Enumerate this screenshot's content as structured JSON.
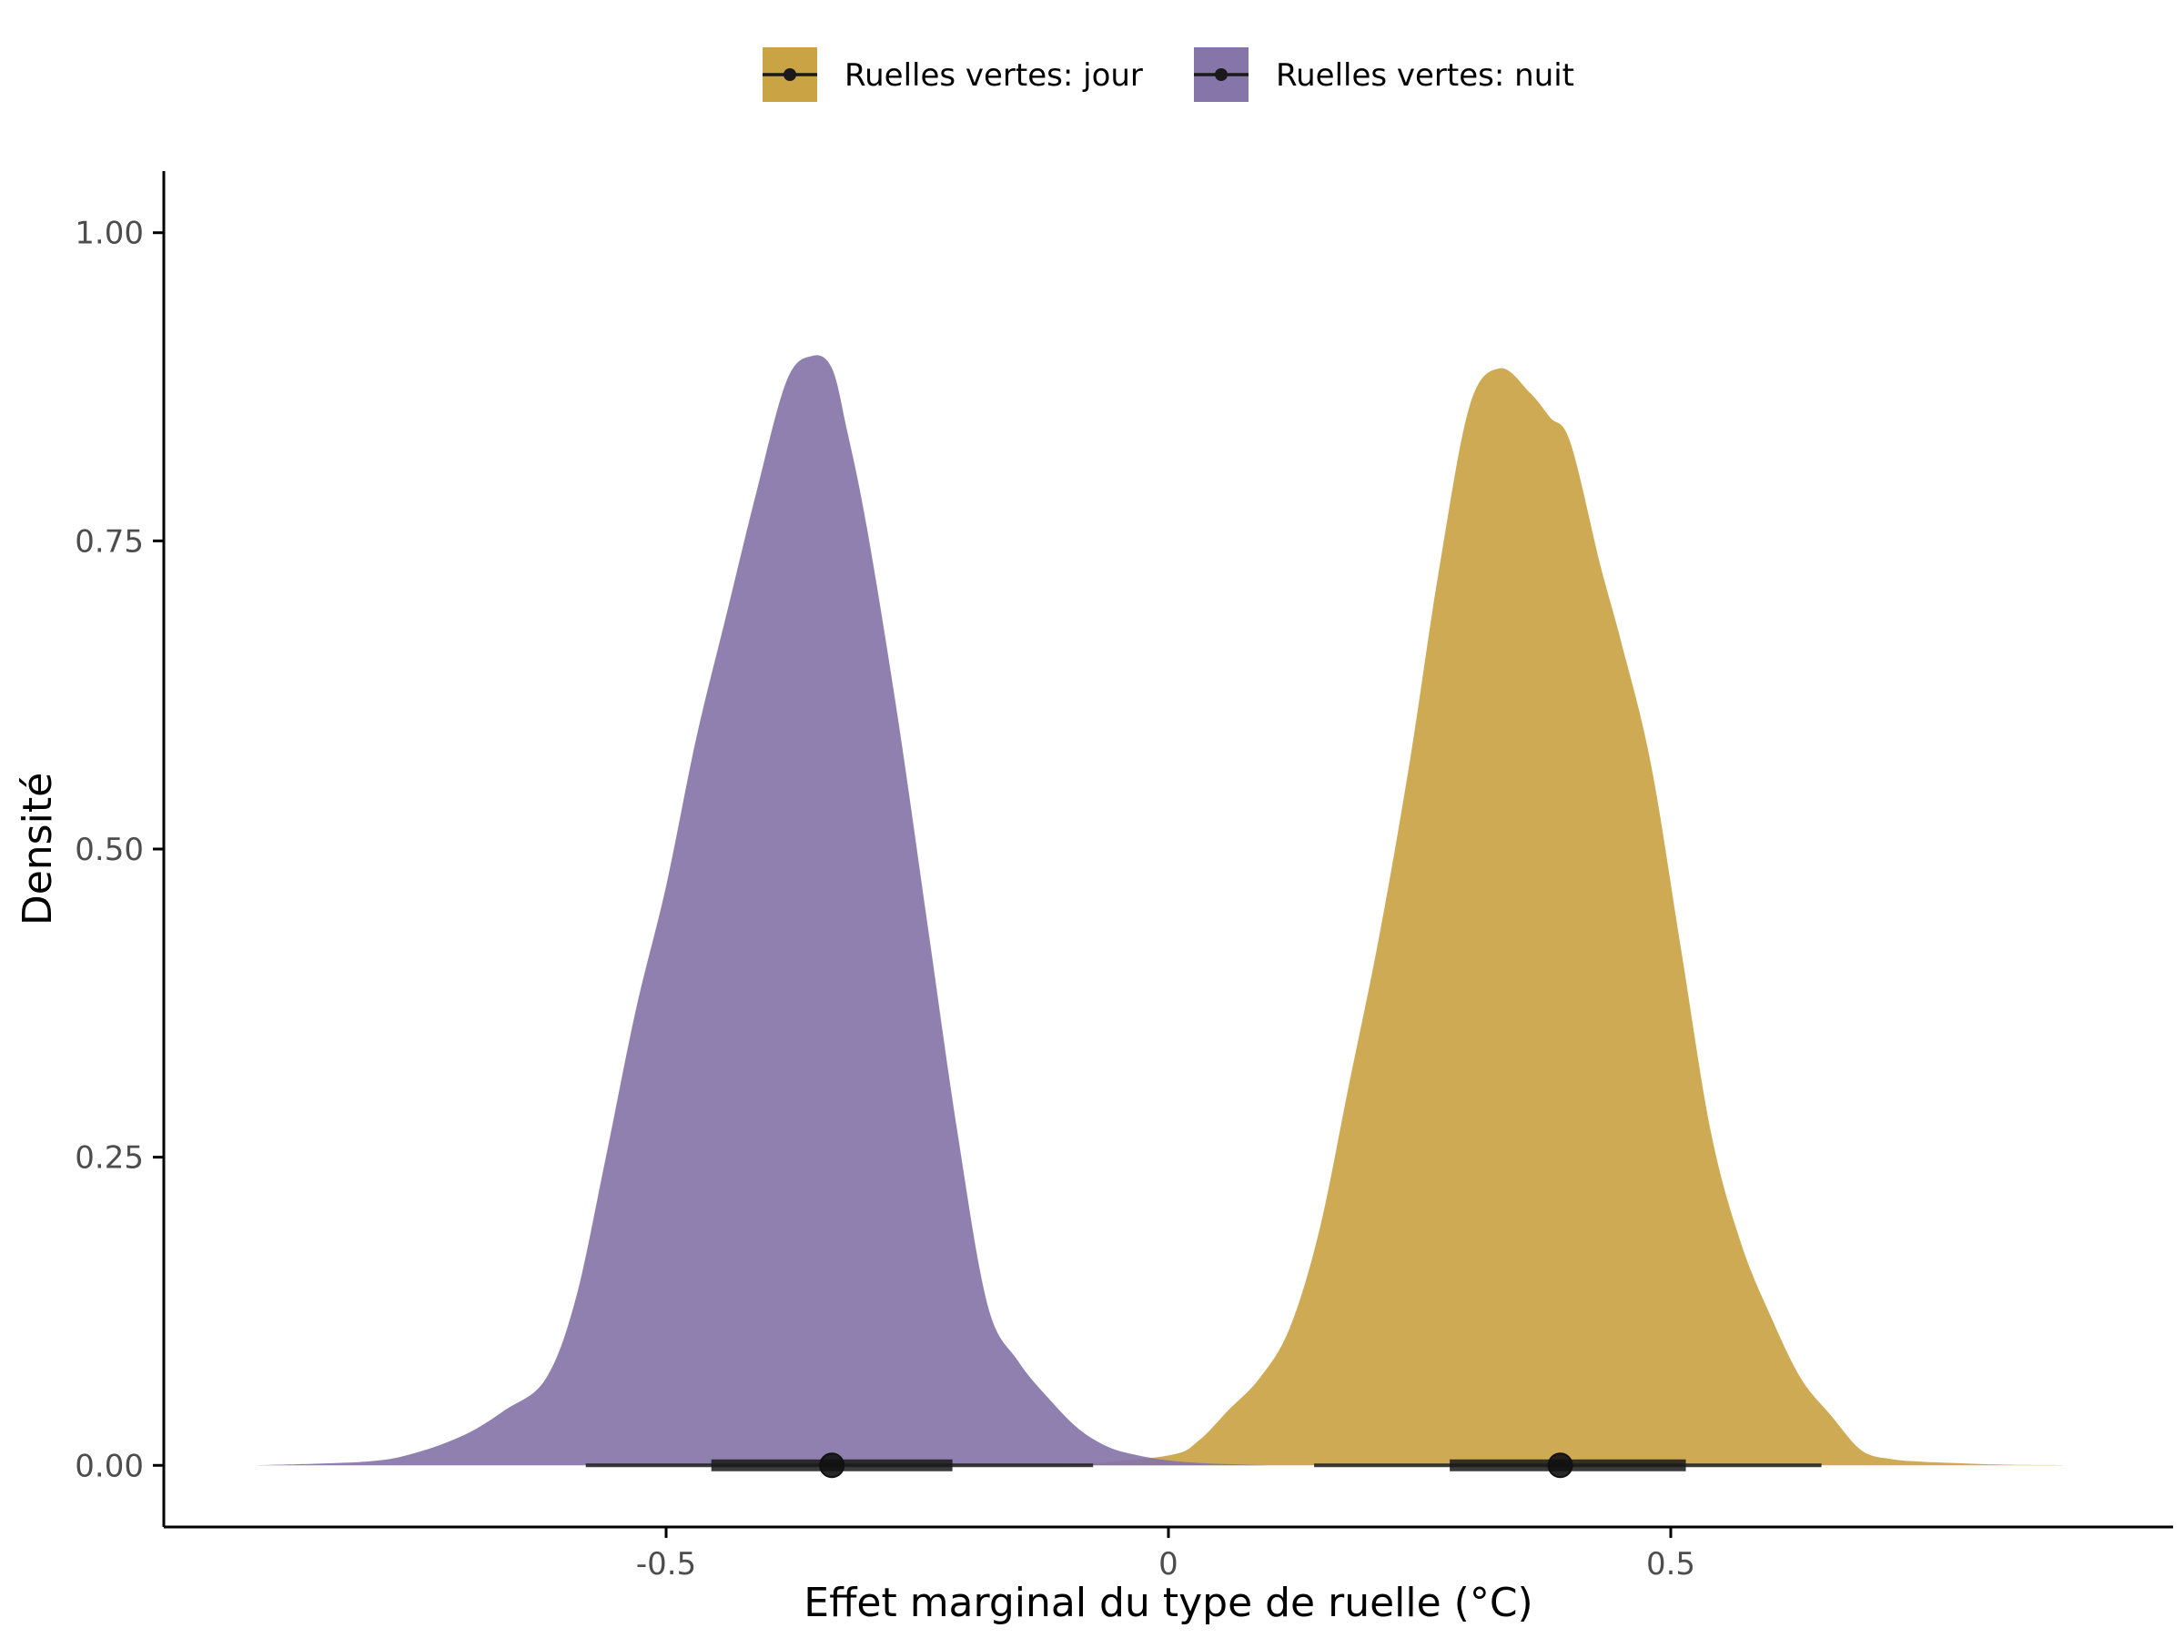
{
  "chart_data": {
    "type": "area",
    "xlabel": "Effet marginal du type de ruelle (°C)",
    "ylabel": "Densité",
    "xlim": [
      -1.0,
      1.0
    ],
    "ylim": [
      -0.05,
      1.05
    ],
    "x_ticks": [
      -0.5,
      0,
      0.5
    ],
    "x_tick_labels": [
      "-0.5",
      "0",
      "0.5"
    ],
    "y_ticks": [
      0,
      0.25,
      0.5,
      0.75,
      1.0
    ],
    "y_tick_labels": [
      "0.00",
      "0.25",
      "0.50",
      "0.75",
      "1.00"
    ],
    "grid": false,
    "legend_position": "top",
    "series": [
      {
        "name": "Ruelles vertes: jour",
        "color": "#c9a344",
        "point": 0.39,
        "interval_inner": [
          0.28,
          0.515
        ],
        "interval_outer": [
          0.145,
          0.65
        ],
        "x": [
          -0.1,
          0.0,
          0.03,
          0.06,
          0.09,
          0.12,
          0.15,
          0.18,
          0.21,
          0.24,
          0.27,
          0.3,
          0.33,
          0.36,
          0.38,
          0.4,
          0.43,
          0.45,
          0.48,
          0.51,
          0.54,
          0.57,
          0.6,
          0.63,
          0.66,
          0.69,
          0.72,
          0.75,
          0.78,
          0.81,
          0.84,
          0.87,
          0.89
        ],
        "y": [
          0.0,
          0.008,
          0.02,
          0.045,
          0.07,
          0.11,
          0.19,
          0.31,
          0.43,
          0.57,
          0.73,
          0.86,
          0.89,
          0.87,
          0.85,
          0.83,
          0.73,
          0.67,
          0.57,
          0.42,
          0.27,
          0.18,
          0.12,
          0.07,
          0.04,
          0.012,
          0.005,
          0.003,
          0.002,
          0.001,
          0.0005,
          0.0003,
          0.0002
        ]
      },
      {
        "name": "Ruelles vertes: nuit",
        "color": "#8675a9",
        "point": -0.335,
        "interval_inner": [
          -0.455,
          -0.215
        ],
        "interval_outer": [
          -0.58,
          -0.075
        ],
        "x": [
          -0.91,
          -0.8,
          -0.75,
          -0.7,
          -0.66,
          -0.62,
          -0.59,
          -0.56,
          -0.53,
          -0.5,
          -0.47,
          -0.44,
          -0.41,
          -0.38,
          -0.355,
          -0.335,
          -0.32,
          -0.3,
          -0.27,
          -0.24,
          -0.21,
          -0.18,
          -0.15,
          -0.12,
          -0.09,
          -0.06,
          -0.03,
          0.0,
          0.03,
          0.06,
          0.1
        ],
        "y": [
          0.0,
          0.003,
          0.01,
          0.025,
          0.045,
          0.07,
          0.135,
          0.25,
          0.37,
          0.47,
          0.59,
          0.69,
          0.79,
          0.88,
          0.9,
          0.89,
          0.84,
          0.76,
          0.61,
          0.44,
          0.27,
          0.13,
          0.085,
          0.055,
          0.03,
          0.015,
          0.008,
          0.004,
          0.002,
          0.001,
          0.0
        ]
      }
    ]
  }
}
